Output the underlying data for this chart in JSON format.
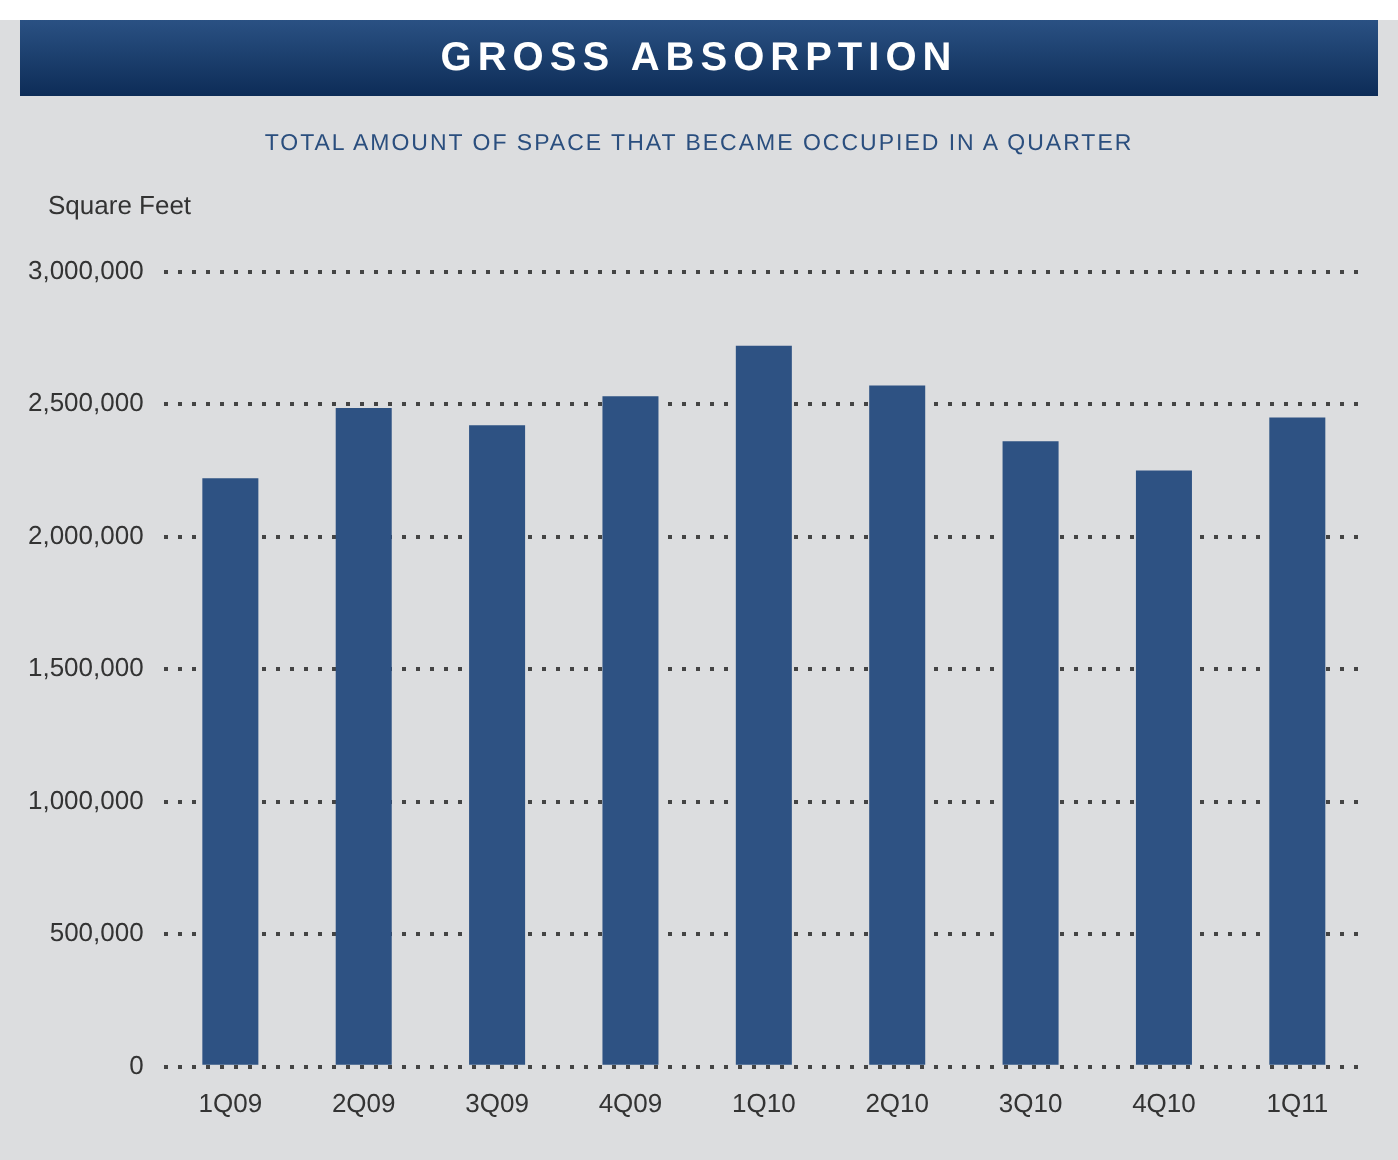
{
  "chart_data": {
    "type": "bar",
    "title": "GROSS ABSORPTION",
    "subtitle": "TOTAL AMOUNT OF SPACE THAT BECAME OCCUPIED IN A QUARTER",
    "ylabel": "Square Feet",
    "categories": [
      "1Q09",
      "2Q09",
      "3Q09",
      "4Q09",
      "1Q10",
      "2Q10",
      "3Q10",
      "4Q10",
      "1Q11"
    ],
    "values": [
      2220000,
      2485000,
      2420000,
      2530000,
      2720000,
      2570000,
      2360000,
      2250000,
      2450000
    ],
    "color": "#2e5283",
    "ylim": [
      0,
      3000000
    ],
    "yticks": [
      {
        "value": 0,
        "label": "0"
      },
      {
        "value": 500000,
        "label": "500,000"
      },
      {
        "value": 1000000,
        "label": "1,000,000"
      },
      {
        "value": 1500000,
        "label": "1,500,000"
      },
      {
        "value": 2000000,
        "label": "2,000,000"
      },
      {
        "value": 2500000,
        "label": "2,500,000"
      },
      {
        "value": 3000000,
        "label": "3,000,000"
      }
    ],
    "grid": "y",
    "legend": false
  }
}
